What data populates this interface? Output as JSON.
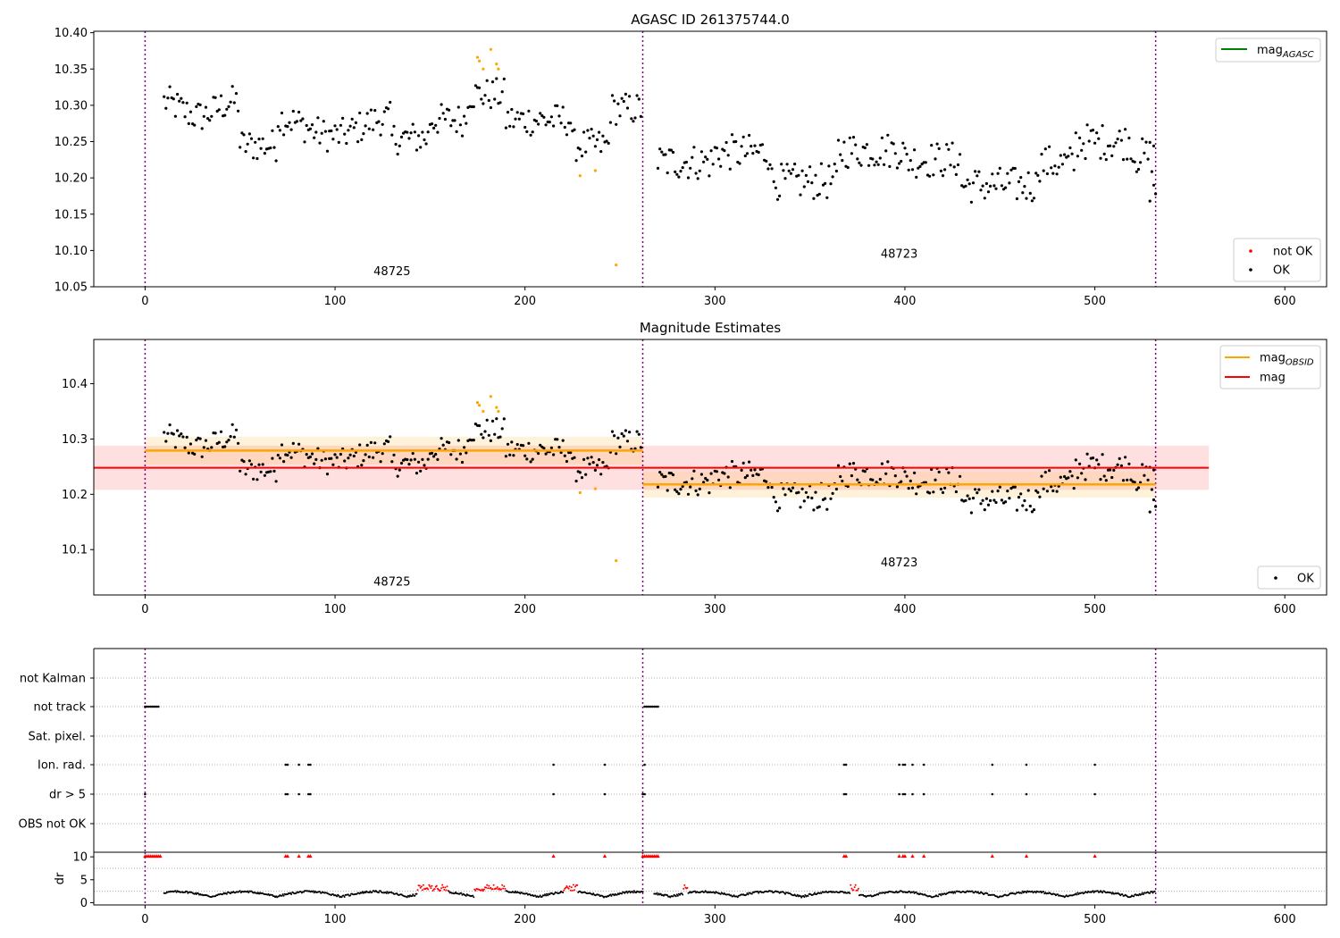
{
  "chart_data": [
    {
      "type": "scatter",
      "title": "AGASC ID 261375744.0",
      "xlabel": "",
      "ylabel": "",
      "xlim": [
        -27,
        622
      ],
      "ylim": [
        10.05,
        10.402
      ],
      "xticks": [
        0,
        100,
        200,
        300,
        400,
        500,
        600
      ],
      "xtick_labels": [
        "0",
        "100",
        "200",
        "300",
        "400",
        "500",
        "600"
      ],
      "yticks": [
        10.05,
        10.1,
        10.15,
        10.2,
        10.25,
        10.3,
        10.35,
        10.4
      ],
      "ytick_labels": [
        "10.05",
        "10.10",
        "10.15",
        "10.20",
        "10.25",
        "10.30",
        "10.35",
        "10.40"
      ],
      "vlines": [
        0,
        262,
        532
      ],
      "segment_labels": [
        {
          "text": "48725",
          "x": 130,
          "y": 10.066
        },
        {
          "text": "48723",
          "x": 397,
          "y": 10.09
        }
      ],
      "legend_lines": [
        {
          "label": "mag",
          "subscript": "AGASC",
          "color": "#008000"
        }
      ],
      "legend_points": [
        {
          "label": "not OK",
          "color": "#ff0000"
        },
        {
          "label": "OK",
          "color": "#000000"
        }
      ],
      "highlight_points": [
        {
          "x": 175,
          "y": 10.366
        },
        {
          "x": 176,
          "y": 10.361
        },
        {
          "x": 178,
          "y": 10.35
        },
        {
          "x": 182,
          "y": 10.377
        },
        {
          "x": 185,
          "y": 10.357
        },
        {
          "x": 186,
          "y": 10.35
        },
        {
          "x": 229,
          "y": 10.203
        },
        {
          "x": 237,
          "y": 10.21
        },
        {
          "x": 248,
          "y": 10.08
        }
      ],
      "highlight_color": "#ffa500"
    },
    {
      "type": "scatter",
      "title": "Magnitude Estimates",
      "xlabel": "",
      "ylabel": "",
      "xlim": [
        -27,
        622
      ],
      "ylim": [
        10.018,
        10.48
      ],
      "xticks": [
        0,
        100,
        200,
        300,
        400,
        500,
        600
      ],
      "xtick_labels": [
        "0",
        "100",
        "200",
        "300",
        "400",
        "500",
        "600"
      ],
      "yticks": [
        10.1,
        10.2,
        10.3,
        10.4
      ],
      "ytick_labels": [
        "10.1",
        "10.2",
        "10.3",
        "10.4"
      ],
      "vlines": [
        0,
        262,
        532
      ],
      "segment_labels": [
        {
          "text": "48725",
          "x": 130,
          "y": 10.035
        },
        {
          "text": "48723",
          "x": 397,
          "y": 10.07
        }
      ],
      "mag": {
        "value": 10.248,
        "band": [
          10.208,
          10.288
        ],
        "x_range": [
          -27,
          560
        ],
        "color": "#ff0000"
      },
      "mag_obsid": [
        {
          "value": 10.279,
          "band": [
            10.254,
            10.304
          ],
          "x_range": [
            0,
            262
          ]
        },
        {
          "value": 10.218,
          "band": [
            10.194,
            10.242
          ],
          "x_range": [
            262,
            532
          ]
        }
      ],
      "legend_lines": [
        {
          "label": "mag",
          "subscript": "OBSID",
          "color": "#ffa500"
        },
        {
          "label": "mag",
          "subscript": "",
          "color": "#ff0000"
        }
      ],
      "legend_points": [
        {
          "label": "OK",
          "color": "#000000"
        }
      ]
    },
    {
      "type": "scatter",
      "title": "",
      "xlabel": "",
      "ylabel": "",
      "xlim": [
        -27,
        622
      ],
      "categories": [
        "not Kalman",
        "not track",
        "Sat. pixel.",
        "Ion. rad.",
        "dr > 5",
        "OBS not OK"
      ],
      "vlines": [
        0,
        262,
        532
      ],
      "flags": {
        "not track": [
          0,
          1,
          2,
          3,
          4,
          5,
          6,
          7,
          263,
          264,
          265,
          266,
          267,
          268,
          269,
          270
        ],
        "Ion. rad.": [
          74,
          75,
          81,
          86,
          87,
          215,
          242,
          263,
          368,
          369,
          397,
          399,
          400,
          404,
          410,
          446,
          464,
          500
        ],
        "dr > 5": [
          0,
          74,
          75,
          81,
          86,
          87,
          215,
          242,
          262,
          263,
          368,
          369,
          397,
          399,
          400,
          404,
          410,
          446,
          464,
          500
        ]
      }
    },
    {
      "type": "scatter",
      "title": "",
      "xlabel": "",
      "ylabel": "dr",
      "xlim": [
        -27,
        622
      ],
      "ylim": [
        -0.5,
        11
      ],
      "yticks": [
        0,
        5,
        10
      ],
      "ytick_labels": [
        "0",
        "5",
        "10"
      ],
      "xticks": [
        0,
        100,
        200,
        300,
        400,
        500,
        600
      ],
      "xtick_labels": [
        "0",
        "100",
        "200",
        "300",
        "400",
        "500",
        "600"
      ],
      "vlines": [
        0,
        262,
        532
      ],
      "clipped_points_x": [
        0,
        1,
        2,
        3,
        4,
        5,
        6,
        7,
        8,
        74,
        75,
        81,
        86,
        87,
        215,
        242,
        262,
        263,
        264,
        265,
        266,
        267,
        268,
        269,
        270,
        368,
        369,
        397,
        399,
        400,
        404,
        410,
        446,
        464,
        500
      ]
    }
  ]
}
